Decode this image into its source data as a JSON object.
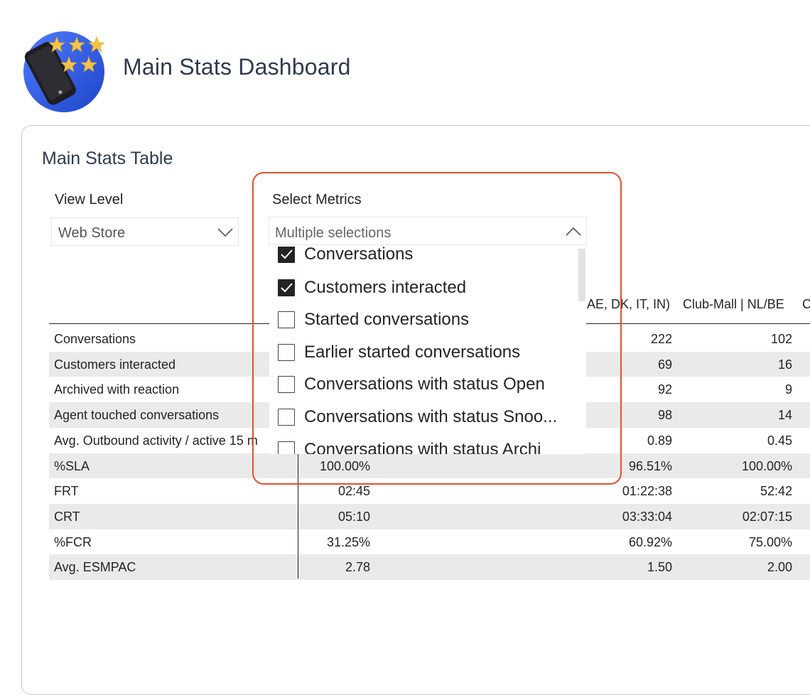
{
  "page": {
    "title": "Main Stats Dashboard"
  },
  "card": {
    "title": "Main Stats Table"
  },
  "slicers": {
    "view_level": {
      "label": "View Level",
      "value": "Web Store"
    },
    "metrics": {
      "label": "Select Metrics",
      "value": "Multiple selections",
      "options": [
        {
          "label": "Conversations",
          "checked": true
        },
        {
          "label": "Customers interacted",
          "checked": true
        },
        {
          "label": "Started conversations",
          "checked": false
        },
        {
          "label": "Earlier started conversations",
          "checked": false
        },
        {
          "label": "Conversations with status Open",
          "checked": false
        },
        {
          "label": "Conversations with status Snoo...",
          "checked": false
        },
        {
          "label": "Conversations with status Archi",
          "checked": false
        }
      ]
    }
  },
  "table": {
    "columns": [
      "AE, DK, IT, IN)",
      "Club-Mall | NL/BE",
      "C"
    ],
    "rows": [
      {
        "name": "Conversations",
        "v1": "",
        "v2": "222",
        "v3": "102"
      },
      {
        "name": "Customers interacted",
        "v1": "",
        "v2": "69",
        "v3": "16"
      },
      {
        "name": "Archived with reaction",
        "v1": "",
        "v2": "92",
        "v3": "9"
      },
      {
        "name": "Agent touched conversations",
        "v1": "",
        "v2": "98",
        "v3": "14"
      },
      {
        "name": "Avg. Outbound activity / active 15 m",
        "v1": "",
        "v2": "0.89",
        "v3": "0.45"
      },
      {
        "name": "%SLA",
        "v1": "100.00%",
        "v2": "96.51%",
        "v3": "100.00%"
      },
      {
        "name": "FRT",
        "v1": "02:45",
        "v2": "01:22:38",
        "v3": "52:42"
      },
      {
        "name": "CRT",
        "v1": "05:10",
        "v2": "03:33:04",
        "v3": "02:07:15"
      },
      {
        "name": "%FCR",
        "v1": "31.25%",
        "v2": "60.92%",
        "v3": "75.00%"
      },
      {
        "name": "Avg. ESMPAC",
        "v1": "2.78",
        "v2": "1.50",
        "v3": "2.00"
      }
    ]
  },
  "icons": {
    "logo": "phone-with-stars-icon",
    "view_chevron": "chevron-down-icon",
    "metrics_chevron": "chevron-up-icon",
    "checkbox_check": "checkmark-icon"
  },
  "colors": {
    "highlight": "#e0502f",
    "logo_circle": "#2f63e6",
    "star": "#f6c445",
    "title": "#2f3a4d"
  }
}
